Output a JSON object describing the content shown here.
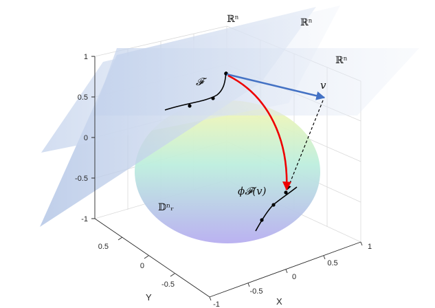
{
  "axes": {
    "x_label": "X",
    "y_label": "Y",
    "z_ticks": [
      "1",
      "0.5",
      "0",
      "-0.5",
      "-1"
    ],
    "x_ticks": [
      "-1",
      "-0.5",
      "0",
      "0.5",
      "1"
    ],
    "y_ticks": [
      "0.5",
      "0",
      "-0.5"
    ]
  },
  "labels": {
    "tangent_space_left": "ℝⁿ",
    "tangent_space_middle": "ℝⁿ",
    "tangent_space_right": "ℝⁿ",
    "curve_family": "𝓕",
    "vector": "v",
    "mapped_point": "ϕ𝓕(v)",
    "ball": "𝔻ⁿᵣ"
  },
  "colors": {
    "plane_fill": "#c5d3ea",
    "vector_arrow": "#4472c4",
    "mapping_arrow": "#ee0000",
    "dashed_projection": "#000000",
    "curve": "#000000",
    "sphere_top": "#f8f7b0",
    "sphere_middle": "#bdeede",
    "sphere_bottom": "#b7aef0"
  }
}
